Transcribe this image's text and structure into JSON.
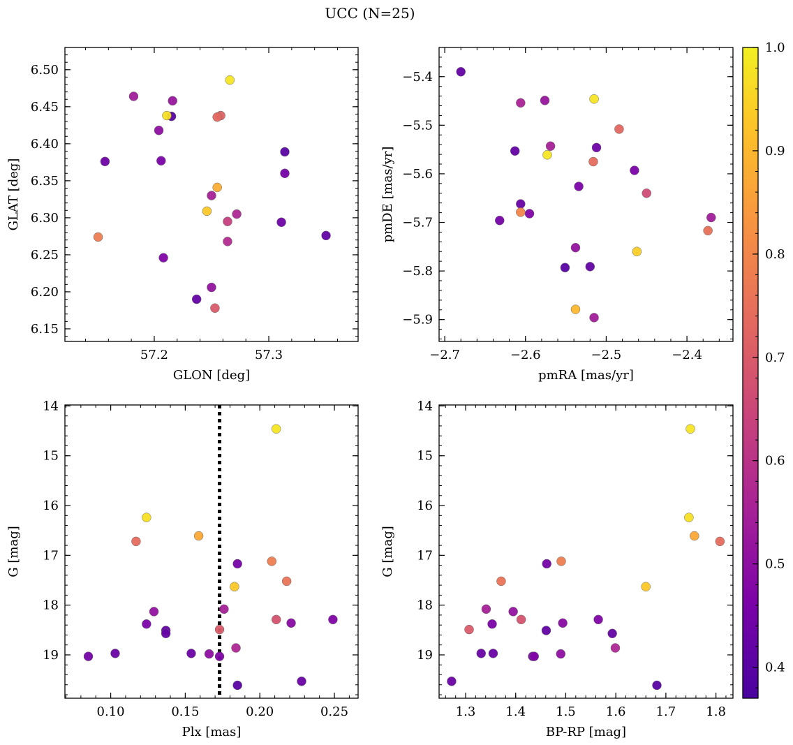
{
  "figure": {
    "title": "UCC (N=25)"
  },
  "colorbar": {
    "range": [
      0.37,
      1.0
    ],
    "ticks": [
      0.4,
      0.5,
      0.6,
      0.7,
      0.8,
      0.9,
      1.0
    ],
    "tick_labels": [
      "0.4",
      "0.5",
      "0.6",
      "0.7",
      "0.8",
      "0.9",
      "1.0"
    ],
    "colormap": "plasma"
  },
  "chart_data": [
    {
      "type": "scatter",
      "xlabel": "GLON [deg]",
      "ylabel": "GLAT [deg]",
      "xlim": [
        57.122,
        57.378
      ],
      "ylim": [
        6.133,
        6.53
      ],
      "xticks": [
        57.2,
        57.3
      ],
      "xtick_labels": [
        "57.2",
        "57.3"
      ],
      "yticks": [
        6.15,
        6.2,
        6.25,
        6.3,
        6.35,
        6.4,
        6.45,
        6.5
      ],
      "ytick_labels": [
        "6.15",
        "6.20",
        "6.25",
        "6.30",
        "6.35",
        "6.40",
        "6.45",
        "6.50"
      ],
      "points": [
        {
          "x": 57.266,
          "y": 6.486,
          "c": 0.98
        },
        {
          "x": 57.182,
          "y": 6.464,
          "c": 0.54
        },
        {
          "x": 57.216,
          "y": 6.458,
          "c": 0.52
        },
        {
          "x": 57.215,
          "y": 6.437,
          "c": 0.4
        },
        {
          "x": 57.211,
          "y": 6.438,
          "c": 0.97
        },
        {
          "x": 57.258,
          "y": 6.438,
          "c": 0.72
        },
        {
          "x": 57.255,
          "y": 6.436,
          "c": 0.73
        },
        {
          "x": 57.204,
          "y": 6.418,
          "c": 0.5
        },
        {
          "x": 57.314,
          "y": 6.389,
          "c": 0.4
        },
        {
          "x": 57.157,
          "y": 6.376,
          "c": 0.44
        },
        {
          "x": 57.206,
          "y": 6.377,
          "c": 0.46
        },
        {
          "x": 57.314,
          "y": 6.36,
          "c": 0.45
        },
        {
          "x": 57.255,
          "y": 6.341,
          "c": 0.88
        },
        {
          "x": 57.25,
          "y": 6.33,
          "c": 0.55
        },
        {
          "x": 57.246,
          "y": 6.309,
          "c": 0.93
        },
        {
          "x": 57.272,
          "y": 6.305,
          "c": 0.57
        },
        {
          "x": 57.151,
          "y": 6.274,
          "c": 0.78
        },
        {
          "x": 57.264,
          "y": 6.295,
          "c": 0.63
        },
        {
          "x": 57.311,
          "y": 6.294,
          "c": 0.44
        },
        {
          "x": 57.35,
          "y": 6.276,
          "c": 0.42
        },
        {
          "x": 57.264,
          "y": 6.268,
          "c": 0.58
        },
        {
          "x": 57.208,
          "y": 6.246,
          "c": 0.47
        },
        {
          "x": 57.25,
          "y": 6.206,
          "c": 0.51
        },
        {
          "x": 57.237,
          "y": 6.19,
          "c": 0.42
        },
        {
          "x": 57.253,
          "y": 6.178,
          "c": 0.7
        }
      ]
    },
    {
      "type": "scatter",
      "xlabel": "pmRA [mas/yr]",
      "ylabel": "pmDE [mas/yr]",
      "xlim": [
        -2.707,
        -2.343
      ],
      "ylim": [
        -5.945,
        -5.34
      ],
      "xticks": [
        -2.7,
        -2.6,
        -2.5,
        -2.4
      ],
      "xtick_labels": [
        "−2.7",
        "−2.6",
        "−2.5",
        "−2.4"
      ],
      "yticks": [
        -5.9,
        -5.8,
        -5.7,
        -5.6,
        -5.5,
        -5.4
      ],
      "ytick_labels": [
        "−5.9",
        "−5.8",
        "−5.7",
        "−5.6",
        "−5.5",
        "−5.4"
      ],
      "points": [
        {
          "x": -2.68,
          "y": -5.39,
          "c": 0.42
        },
        {
          "x": -2.606,
          "y": -5.454,
          "c": 0.56
        },
        {
          "x": -2.576,
          "y": -5.449,
          "c": 0.52
        },
        {
          "x": -2.515,
          "y": -5.446,
          "c": 0.98
        },
        {
          "x": -2.484,
          "y": -5.508,
          "c": 0.73
        },
        {
          "x": -2.569,
          "y": -5.543,
          "c": 0.55
        },
        {
          "x": -2.512,
          "y": -5.546,
          "c": 0.44
        },
        {
          "x": -2.613,
          "y": -5.553,
          "c": 0.42
        },
        {
          "x": -2.573,
          "y": -5.561,
          "c": 0.98
        },
        {
          "x": -2.516,
          "y": -5.575,
          "c": 0.74
        },
        {
          "x": -2.465,
          "y": -5.593,
          "c": 0.46
        },
        {
          "x": -2.534,
          "y": -5.626,
          "c": 0.46
        },
        {
          "x": -2.45,
          "y": -5.64,
          "c": 0.66
        },
        {
          "x": -2.606,
          "y": -5.662,
          "c": 0.43
        },
        {
          "x": -2.606,
          "y": -5.679,
          "c": 0.8
        },
        {
          "x": -2.595,
          "y": -5.682,
          "c": 0.47
        },
        {
          "x": -2.632,
          "y": -5.696,
          "c": 0.45
        },
        {
          "x": -2.37,
          "y": -5.69,
          "c": 0.54
        },
        {
          "x": -2.374,
          "y": -5.717,
          "c": 0.75
        },
        {
          "x": -2.538,
          "y": -5.752,
          "c": 0.51
        },
        {
          "x": -2.462,
          "y": -5.76,
          "c": 0.94
        },
        {
          "x": -2.551,
          "y": -5.793,
          "c": 0.4
        },
        {
          "x": -2.52,
          "y": -5.791,
          "c": 0.42
        },
        {
          "x": -2.538,
          "y": -5.879,
          "c": 0.9
        },
        {
          "x": -2.515,
          "y": -5.896,
          "c": 0.54
        }
      ]
    },
    {
      "type": "scatter",
      "xlabel": "Plx [mas]",
      "ylabel": "G [mag]",
      "xlim": [
        0.0693,
        0.2659
      ],
      "ylim": [
        19.87,
        13.98
      ],
      "y_inverted": true,
      "xticks": [
        0.1,
        0.15,
        0.2,
        0.25
      ],
      "xtick_labels": [
        "0.10",
        "0.15",
        "0.20",
        "0.25"
      ],
      "yticks": [
        14,
        15,
        16,
        17,
        18,
        19
      ],
      "ytick_labels": [
        "14",
        "15",
        "16",
        "17",
        "18",
        "19"
      ],
      "vline": {
        "x": 0.173,
        "style": "dotted"
      },
      "points": [
        {
          "x": 0.211,
          "y": 14.46,
          "c": 0.98
        },
        {
          "x": 0.124,
          "y": 16.24,
          "c": 0.97
        },
        {
          "x": 0.159,
          "y": 16.61,
          "c": 0.87
        },
        {
          "x": 0.117,
          "y": 16.72,
          "c": 0.74
        },
        {
          "x": 0.208,
          "y": 17.12,
          "c": 0.78
        },
        {
          "x": 0.185,
          "y": 17.17,
          "c": 0.45
        },
        {
          "x": 0.218,
          "y": 17.52,
          "c": 0.76
        },
        {
          "x": 0.183,
          "y": 17.63,
          "c": 0.93
        },
        {
          "x": 0.176,
          "y": 18.08,
          "c": 0.55
        },
        {
          "x": 0.129,
          "y": 18.13,
          "c": 0.51
        },
        {
          "x": 0.211,
          "y": 18.29,
          "c": 0.68
        },
        {
          "x": 0.249,
          "y": 18.29,
          "c": 0.47
        },
        {
          "x": 0.124,
          "y": 18.38,
          "c": 0.46
        },
        {
          "x": 0.221,
          "y": 18.36,
          "c": 0.49
        },
        {
          "x": 0.173,
          "y": 18.49,
          "c": 0.7
        },
        {
          "x": 0.137,
          "y": 18.51,
          "c": 0.42
        },
        {
          "x": 0.137,
          "y": 18.57,
          "c": 0.42
        },
        {
          "x": 0.184,
          "y": 18.86,
          "c": 0.57
        },
        {
          "x": 0.103,
          "y": 18.97,
          "c": 0.43
        },
        {
          "x": 0.154,
          "y": 18.97,
          "c": 0.43
        },
        {
          "x": 0.166,
          "y": 18.98,
          "c": 0.5
        },
        {
          "x": 0.085,
          "y": 19.03,
          "c": 0.45
        },
        {
          "x": 0.173,
          "y": 19.03,
          "c": 0.47
        },
        {
          "x": 0.228,
          "y": 19.53,
          "c": 0.43
        },
        {
          "x": 0.185,
          "y": 19.61,
          "c": 0.4
        }
      ]
    },
    {
      "type": "scatter",
      "xlabel": "BP-RP [mag]",
      "ylabel": "G [mag]",
      "xlim": [
        1.247,
        1.834
      ],
      "ylim": [
        19.87,
        13.98
      ],
      "y_inverted": true,
      "xticks": [
        1.3,
        1.4,
        1.5,
        1.6,
        1.7,
        1.8
      ],
      "xtick_labels": [
        "1.3",
        "1.4",
        "1.5",
        "1.6",
        "1.7",
        "1.8"
      ],
      "yticks": [
        14,
        15,
        16,
        17,
        18,
        19
      ],
      "ytick_labels": [
        "14",
        "15",
        "16",
        "17",
        "18",
        "19"
      ],
      "points": [
        {
          "x": 1.749,
          "y": 14.46,
          "c": 0.98
        },
        {
          "x": 1.746,
          "y": 16.24,
          "c": 0.97
        },
        {
          "x": 1.757,
          "y": 16.61,
          "c": 0.87
        },
        {
          "x": 1.808,
          "y": 16.72,
          "c": 0.74
        },
        {
          "x": 1.491,
          "y": 17.12,
          "c": 0.78
        },
        {
          "x": 1.462,
          "y": 17.17,
          "c": 0.45
        },
        {
          "x": 1.371,
          "y": 17.52,
          "c": 0.76
        },
        {
          "x": 1.66,
          "y": 17.63,
          "c": 0.93
        },
        {
          "x": 1.341,
          "y": 18.08,
          "c": 0.55
        },
        {
          "x": 1.395,
          "y": 18.13,
          "c": 0.51
        },
        {
          "x": 1.411,
          "y": 18.29,
          "c": 0.68
        },
        {
          "x": 1.565,
          "y": 18.29,
          "c": 0.47
        },
        {
          "x": 1.353,
          "y": 18.38,
          "c": 0.46
        },
        {
          "x": 1.494,
          "y": 18.36,
          "c": 0.49
        },
        {
          "x": 1.307,
          "y": 18.49,
          "c": 0.7
        },
        {
          "x": 1.461,
          "y": 18.51,
          "c": 0.42
        },
        {
          "x": 1.593,
          "y": 18.57,
          "c": 0.42
        },
        {
          "x": 1.599,
          "y": 18.86,
          "c": 0.57
        },
        {
          "x": 1.331,
          "y": 18.97,
          "c": 0.43
        },
        {
          "x": 1.355,
          "y": 18.97,
          "c": 0.43
        },
        {
          "x": 1.49,
          "y": 18.98,
          "c": 0.5
        },
        {
          "x": 1.434,
          "y": 19.03,
          "c": 0.45
        },
        {
          "x": 1.437,
          "y": 19.03,
          "c": 0.47
        },
        {
          "x": 1.272,
          "y": 19.53,
          "c": 0.43
        },
        {
          "x": 1.682,
          "y": 19.61,
          "c": 0.4
        }
      ]
    }
  ]
}
